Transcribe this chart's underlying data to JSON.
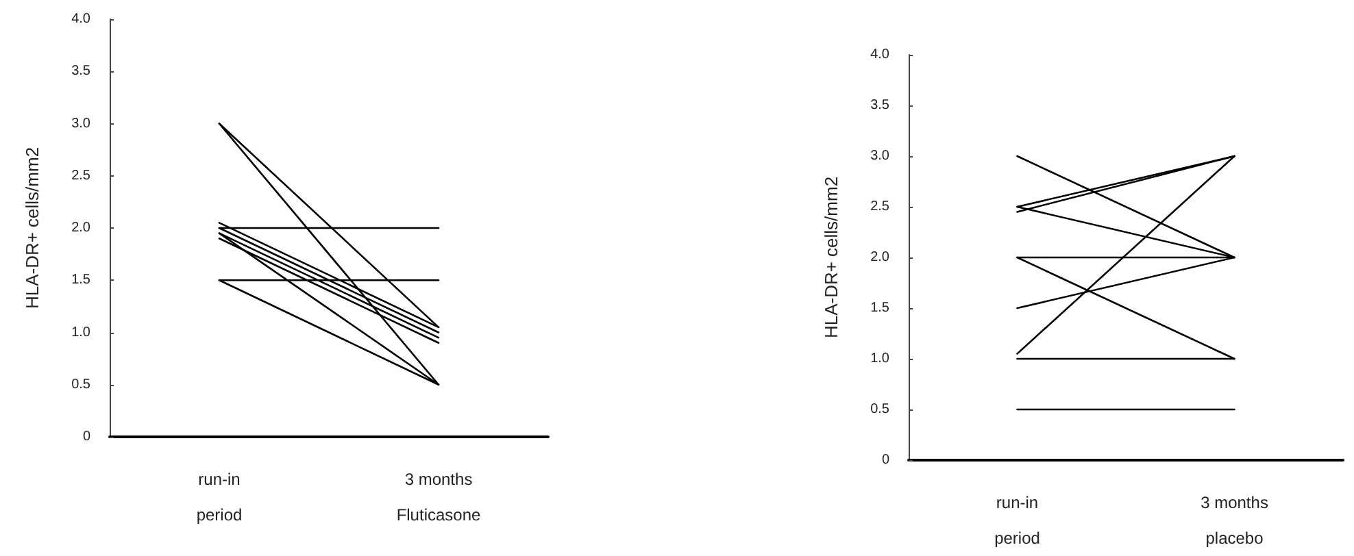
{
  "chart_data": [
    {
      "type": "line",
      "ylabel": "HLA-DR+ cells/mm2",
      "categories": [
        "run-in\nperiod",
        "3 months\nFluticasone"
      ],
      "ylim": [
        0,
        4
      ],
      "yticks": [
        0,
        0.5,
        {
          "value": 1,
          "label": "1.0"
        },
        1.5,
        {
          "value": 2,
          "label": "2.0"
        },
        2.5,
        {
          "value": 3,
          "label": "3.0"
        },
        3.5,
        {
          "value": 4,
          "label": "4.0"
        }
      ],
      "grid": false,
      "marker": "none",
      "line_style": "solid",
      "series": [
        {
          "color": "#000000",
          "values": [
            3.0,
            1.05
          ]
        },
        {
          "color": "#000000",
          "values": [
            3.0,
            0.5
          ]
        },
        {
          "color": "#000000",
          "values": [
            2.0,
            2.0
          ]
        },
        {
          "color": "#000000",
          "values": [
            1.5,
            1.5
          ]
        },
        {
          "color": "#000000",
          "values": [
            1.5,
            0.5
          ]
        },
        {
          "color": "#000000",
          "values": [
            1.95,
            0.5
          ]
        },
        {
          "color": "#000000",
          "values": [
            2.05,
            1.05
          ]
        },
        {
          "color": "#000000",
          "values": [
            2.0,
            1.0
          ]
        },
        {
          "color": "#000000",
          "values": [
            1.95,
            0.95
          ]
        },
        {
          "color": "#000000",
          "values": [
            1.9,
            0.9
          ]
        }
      ]
    },
    {
      "type": "line",
      "ylabel": "HLA-DR+ cells/mm2",
      "categories": [
        "run-in\nperiod",
        "3 months\nplacebo"
      ],
      "ylim": [
        0,
        4
      ],
      "yticks": [
        0,
        0.5,
        {
          "value": 1,
          "label": "1.0"
        },
        1.5,
        {
          "value": 2,
          "label": "2.0"
        },
        2.5,
        {
          "value": 3,
          "label": "3.0"
        },
        3.5,
        {
          "value": 4,
          "label": "4.0"
        }
      ],
      "grid": false,
      "marker": "none",
      "line_style": "solid",
      "series": [
        {
          "color": "#000000",
          "values": [
            3.0,
            2.0
          ]
        },
        {
          "color": "#000000",
          "values": [
            2.5,
            3.0
          ]
        },
        {
          "color": "#000000",
          "values": [
            2.45,
            3.0
          ]
        },
        {
          "color": "#000000",
          "values": [
            2.5,
            2.0
          ]
        },
        {
          "color": "#000000",
          "values": [
            2.0,
            2.0
          ]
        },
        {
          "color": "#000000",
          "values": [
            2.0,
            1.0
          ]
        },
        {
          "color": "#000000",
          "values": [
            1.5,
            2.0
          ]
        },
        {
          "color": "#000000",
          "values": [
            1.05,
            3.0
          ]
        },
        {
          "color": "#000000",
          "values": [
            1.0,
            1.0
          ]
        },
        {
          "color": "#000000",
          "values": [
            0.5,
            0.5
          ]
        }
      ]
    }
  ]
}
